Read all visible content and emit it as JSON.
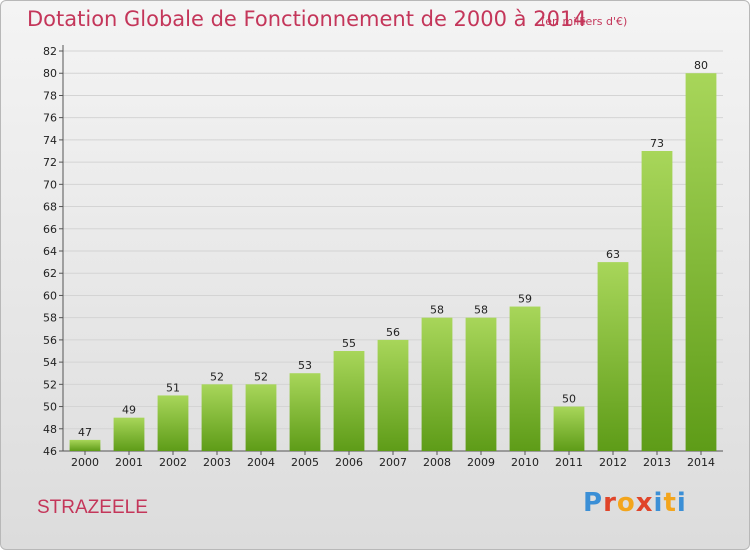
{
  "header": {
    "title": "Dotation Globale de Fonctionnement de 2000 à 2014",
    "subtitle": "(en milliers d'€)"
  },
  "footer": {
    "city": "STRAZEELE",
    "brand": "Proxiti",
    "brand_colors": [
      "#3b8fd6",
      "#e0452a",
      "#f3a51c",
      "#e0452a",
      "#3b8fd6",
      "#f3a51c",
      "#3b8fd6"
    ]
  },
  "colors": {
    "bar_top": "#a8d65a",
    "bar_bottom": "#5e9c18",
    "text_accent": "#c4365a",
    "grid": "#d4d4d4"
  },
  "chart_data": {
    "type": "bar",
    "title": "Dotation Globale de Fonctionnement de 2000 à 2014",
    "categories": [
      "2000",
      "2001",
      "2002",
      "2003",
      "2004",
      "2005",
      "2006",
      "2007",
      "2008",
      "2009",
      "2010",
      "2011",
      "2012",
      "2013",
      "2014"
    ],
    "values": [
      47,
      49,
      51,
      52,
      52,
      53,
      55,
      56,
      58,
      58,
      59,
      50,
      63,
      73,
      80
    ],
    "yticks": [
      46,
      48,
      50,
      52,
      54,
      56,
      58,
      60,
      62,
      64,
      66,
      68,
      70,
      72,
      74,
      76,
      78,
      80,
      82
    ],
    "ylim": [
      46,
      82
    ],
    "xlabel": "",
    "ylabel": "",
    "grid": true
  }
}
